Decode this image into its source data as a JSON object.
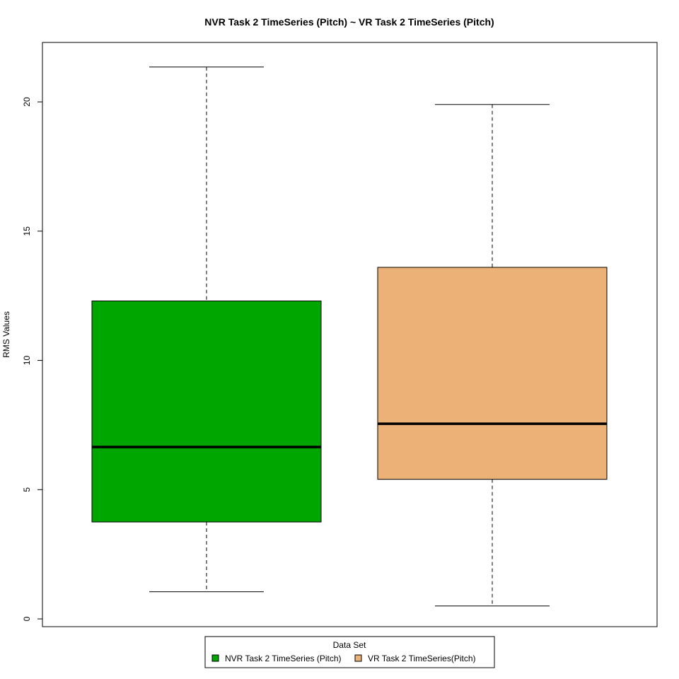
{
  "chart_data": {
    "type": "box",
    "title": "NVR Task 2 TimeSeries (Pitch) ~ VR Task 2 TimeSeries (Pitch)",
    "xlabel": "",
    "ylabel": "RMS Values",
    "ylim": [
      -0.3,
      22.3
    ],
    "yticks": [
      0,
      5,
      10,
      15,
      20
    ],
    "grid": false,
    "legend": {
      "title": "Data Set",
      "position": "bottom-center",
      "entries": [
        "NVR Task 2 TimeSeries  (Pitch)",
        "VR Task 2 TimeSeries(Pitch)"
      ]
    },
    "series": [
      {
        "name": "NVR Task 2 TimeSeries  (Pitch)",
        "color": "#00A600",
        "min": 1.05,
        "q1": 3.75,
        "median": 6.65,
        "q3": 12.3,
        "max": 21.35
      },
      {
        "name": "VR Task 2 TimeSeries(Pitch)",
        "color": "#ECB176",
        "min": 0.5,
        "q1": 5.4,
        "median": 7.55,
        "q3": 13.6,
        "max": 19.9
      }
    ]
  }
}
